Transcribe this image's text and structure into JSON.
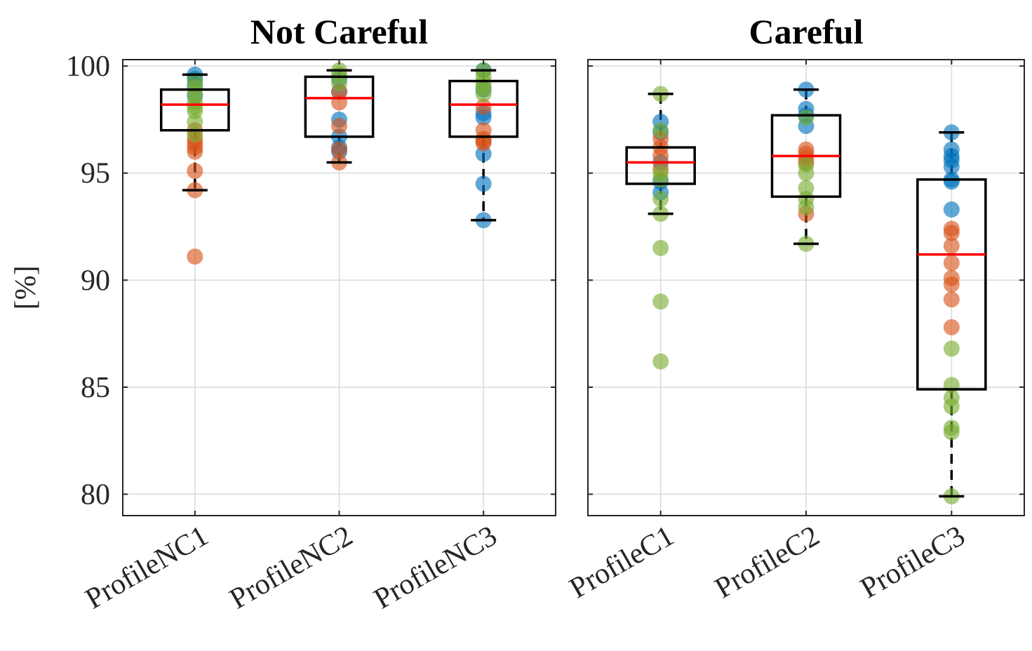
{
  "chart_data": [
    {
      "type": "box",
      "title": "Not Careful",
      "ylabel": "[%]",
      "ylim": [
        79,
        100.3
      ],
      "yticks": [
        80,
        85,
        90,
        95,
        100
      ],
      "grid": true,
      "categories": [
        "ProfileNC1",
        "ProfileNC2",
        "ProfileNC3"
      ],
      "boxes": [
        {
          "min": 94.2,
          "q1": 97.0,
          "median": 98.2,
          "q3": 98.9,
          "max": 99.6
        },
        {
          "min": 95.5,
          "q1": 96.7,
          "median": 98.5,
          "q3": 99.5,
          "max": 99.8
        },
        {
          "min": 92.8,
          "q1": 96.7,
          "median": 98.2,
          "q3": 99.3,
          "max": 99.8
        }
      ],
      "series": [
        {
          "name": "blue",
          "color": "#0072BD",
          "values": [
            [
              99.6,
              99.4,
              99.1,
              98.6
            ],
            [
              99.4,
              98.8,
              97.5,
              96.7,
              96.0,
              96.2
            ],
            [
              99.8,
              98.9,
              97.8,
              97.6,
              95.9,
              94.5,
              92.8
            ]
          ]
        },
        {
          "name": "orange",
          "color": "#D95319",
          "values": [
            [
              97.0,
              96.6,
              96.4,
              96.2,
              96.0,
              95.1,
              94.2,
              91.1
            ],
            [
              98.8,
              98.3,
              97.2,
              96.1,
              95.5
            ],
            [
              98.1,
              97.0,
              96.6,
              96.5,
              96.4
            ]
          ]
        },
        {
          "name": "green",
          "color": "#77AC30",
          "values": [
            [
              99.3,
              99.0,
              98.7,
              98.3,
              98.1,
              97.9,
              97.4,
              96.8
            ],
            [
              99.8,
              99.6,
              99.2
            ],
            [
              99.8,
              99.5,
              99.2,
              99.0,
              98.7
            ]
          ]
        }
      ]
    },
    {
      "type": "box",
      "title": "Careful",
      "ylim": [
        79,
        100.3
      ],
      "yticks": [
        80,
        85,
        90,
        95,
        100
      ],
      "grid": true,
      "categories": [
        "ProfileC1",
        "ProfileC2",
        "ProfileC3"
      ],
      "boxes": [
        {
          "min": 93.1,
          "q1": 94.5,
          "median": 95.5,
          "q3": 96.2,
          "max": 98.7
        },
        {
          "min": 91.7,
          "q1": 93.9,
          "median": 95.8,
          "q3": 97.7,
          "max": 98.9
        },
        {
          "min": 79.9,
          "q1": 84.9,
          "median": 91.2,
          "q3": 94.7,
          "max": 96.9
        }
      ],
      "series": [
        {
          "name": "blue",
          "color": "#0072BD",
          "values": [
            [
              97.4,
              96.9,
              95.5,
              94.6,
              94.1
            ],
            [
              98.9,
              98.0,
              97.7,
              97.2
            ],
            [
              96.9,
              96.1,
              95.8,
              95.6,
              95.3,
              94.7,
              94.6,
              93.3
            ]
          ]
        },
        {
          "name": "orange",
          "color": "#D95319",
          "values": [
            [
              96.6,
              96.2,
              95.8,
              95.2
            ],
            [
              96.1,
              95.9,
              95.7,
              95.5,
              93.1
            ],
            [
              92.4,
              92.2,
              91.6,
              90.8,
              90.1,
              89.8,
              89.1,
              87.8
            ]
          ]
        },
        {
          "name": "green",
          "color": "#77AC30",
          "values": [
            [
              98.7,
              97.0,
              95.0,
              94.7,
              93.8,
              93.1,
              91.5,
              89.0,
              86.2
            ],
            [
              97.6,
              95.4,
              95.0,
              94.3,
              93.8,
              93.4,
              91.7
            ],
            [
              86.8,
              85.1,
              84.5,
              84.1,
              83.1,
              82.9,
              79.9
            ]
          ]
        }
      ]
    }
  ]
}
